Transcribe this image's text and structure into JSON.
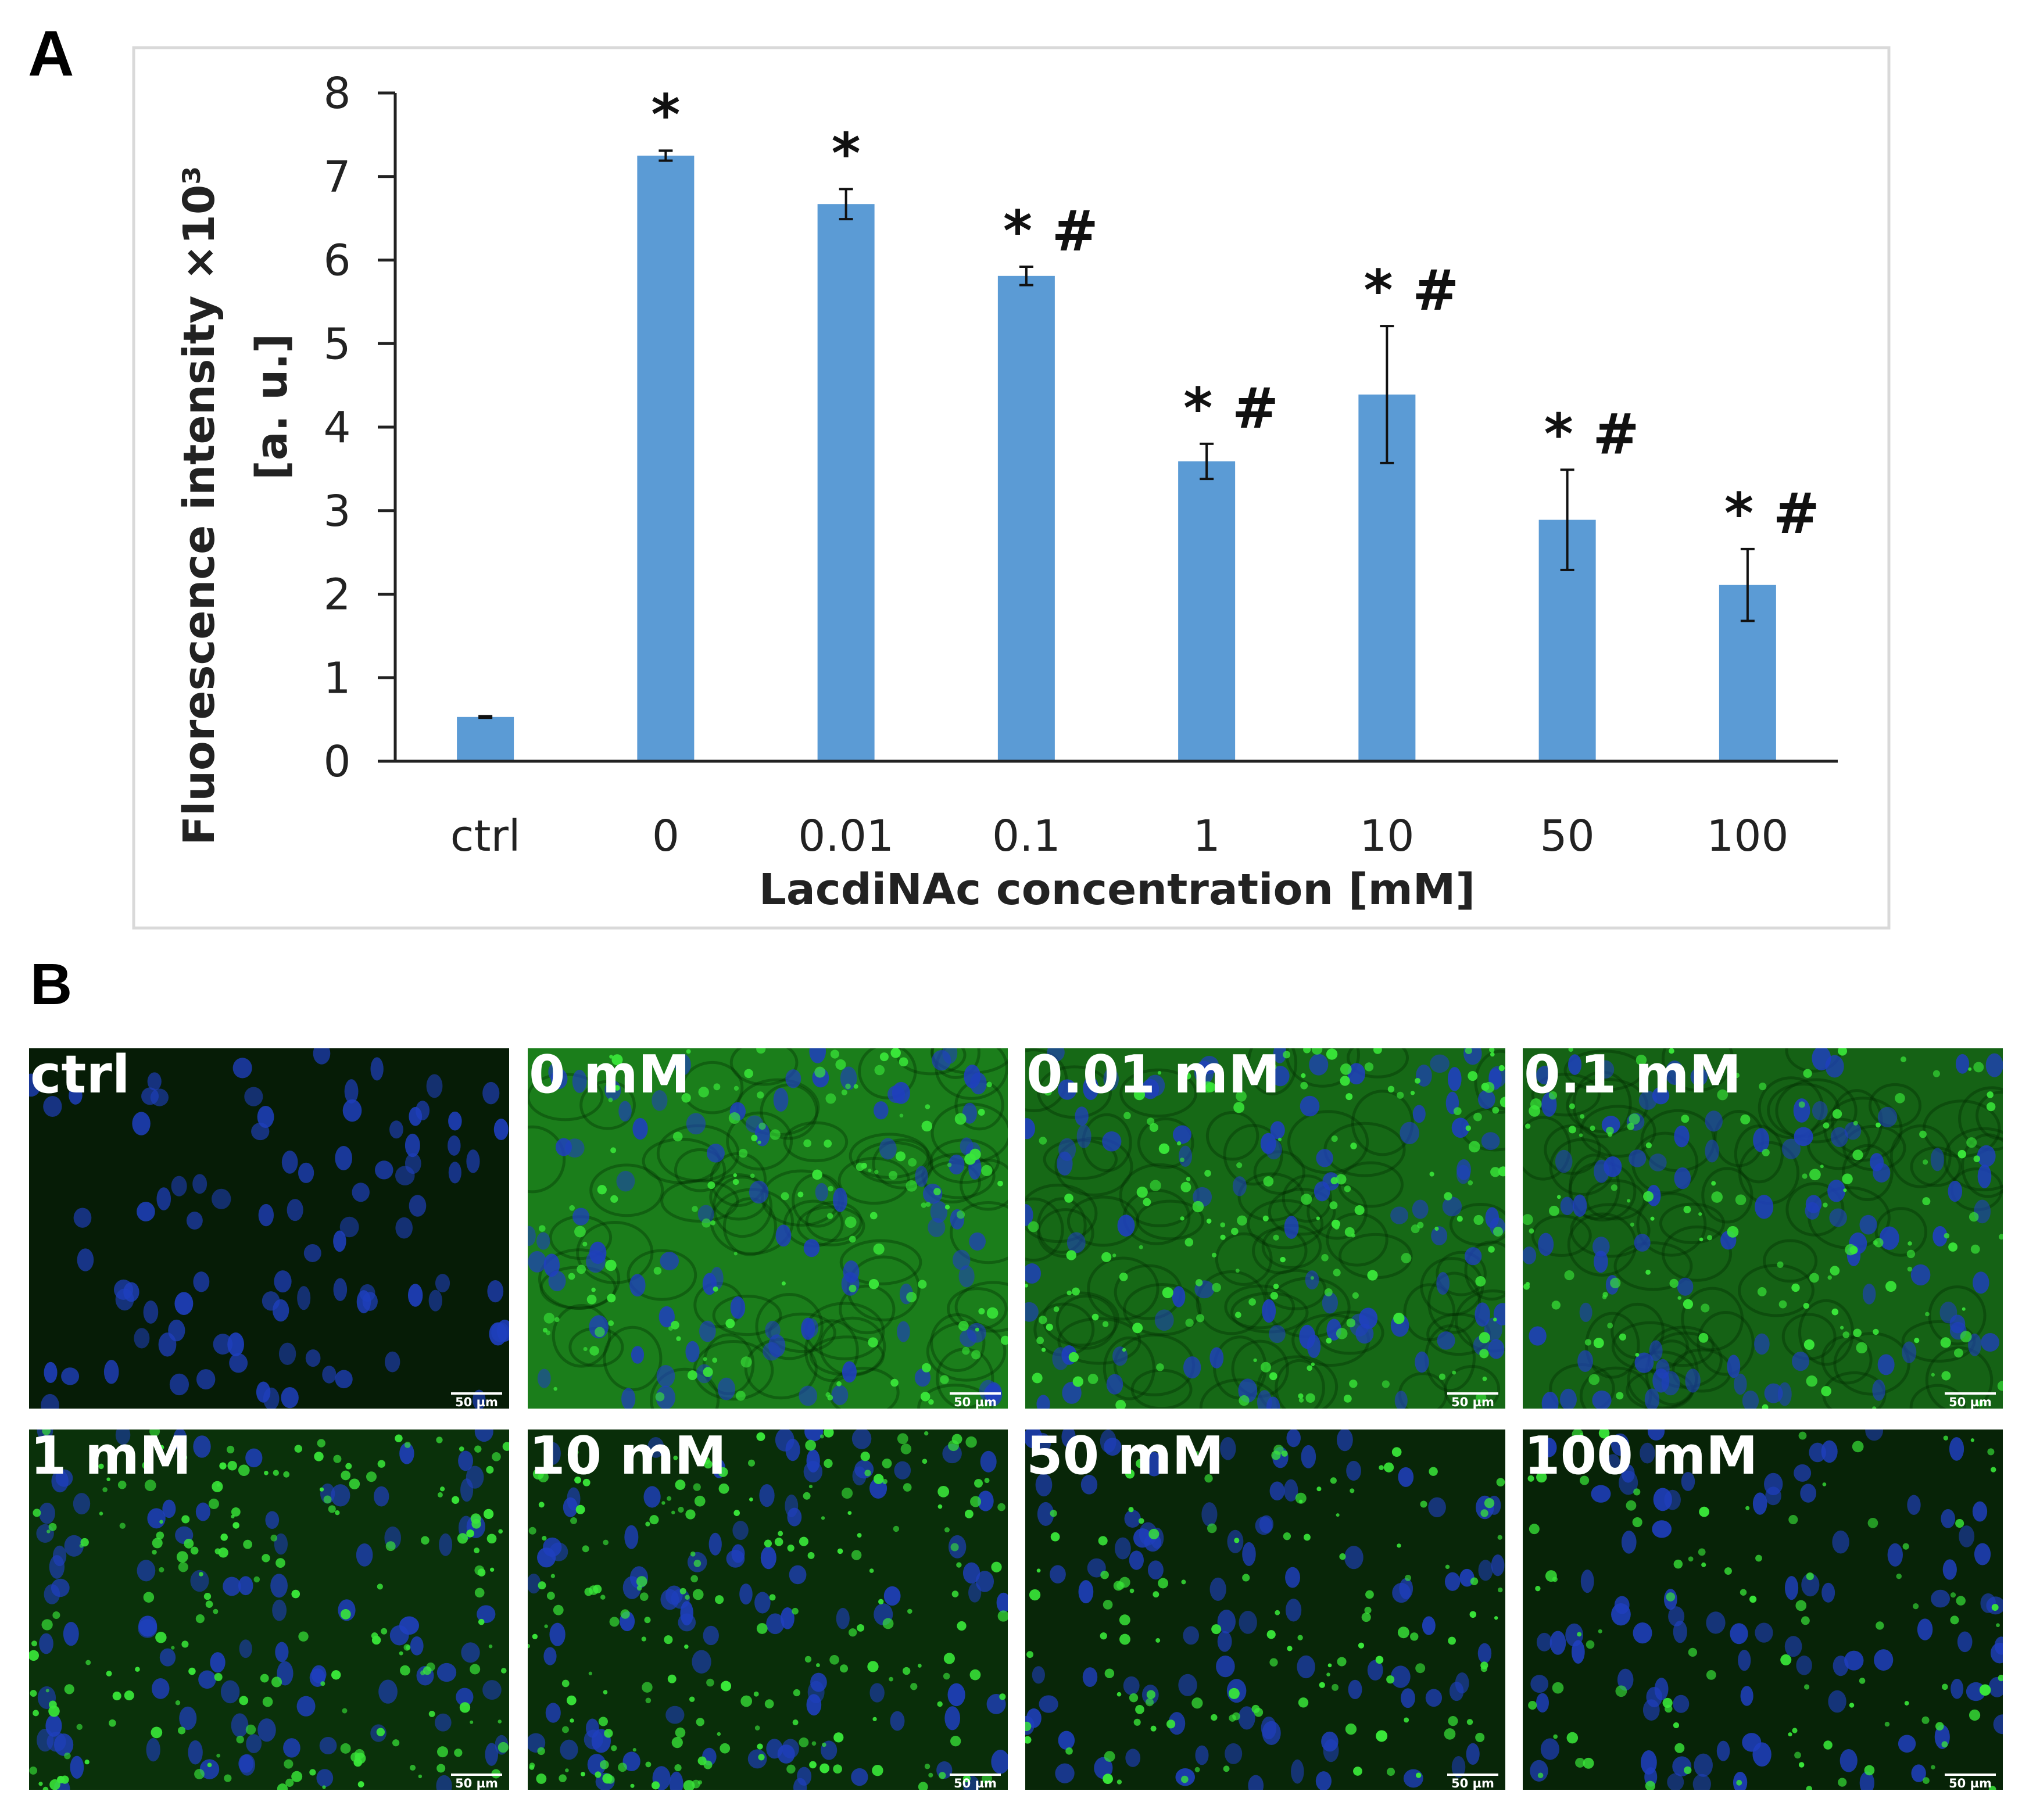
{
  "panel_labels": {
    "a": "A",
    "b": "B"
  },
  "chart_data": {
    "type": "bar",
    "categories": [
      "ctrl",
      "0",
      "0.01",
      "0.1",
      "1",
      "10",
      "50",
      "100"
    ],
    "values": [
      0.53,
      7.25,
      6.67,
      5.81,
      3.59,
      4.39,
      2.89,
      2.11
    ],
    "errors": [
      0.01,
      0.06,
      0.18,
      0.11,
      0.21,
      0.82,
      0.6,
      0.43
    ],
    "significance": [
      "",
      "*",
      "*",
      "* #",
      "* #",
      "* #",
      "* #",
      "* #"
    ],
    "ylabel_line1": "Fluorescence intensity ×10³",
    "ylabel_line2": "[a. u.]",
    "xlabel": "LacdiNAc concentration [mM]",
    "ylim": [
      0,
      8
    ],
    "yticks": [
      0,
      1,
      2,
      3,
      4,
      5,
      6,
      7,
      8
    ],
    "bar_color": "#5b9bd5"
  },
  "micrographs": {
    "scale_bar_label": "50 µm",
    "panels": [
      {
        "label": "ctrl",
        "brightness": 0.05,
        "puncta": 0.0
      },
      {
        "label": "0 mM",
        "brightness": 0.75,
        "puncta": 0.5
      },
      {
        "label": "0.01 mM",
        "brightness": 0.6,
        "puncta": 0.6
      },
      {
        "label": "0.1 mM",
        "brightness": 0.55,
        "puncta": 0.5
      },
      {
        "label": "1 mM",
        "brightness": 0.2,
        "puncta": 0.7
      },
      {
        "label": "10 mM",
        "brightness": 0.18,
        "puncta": 0.75
      },
      {
        "label": "50 mM",
        "brightness": 0.12,
        "puncta": 0.45
      },
      {
        "label": "100 mM",
        "brightness": 0.1,
        "puncta": 0.35
      }
    ],
    "colors": {
      "nucleus": "#1f3fbf",
      "stain": "#39e639",
      "bg_dark": "#041504"
    }
  }
}
